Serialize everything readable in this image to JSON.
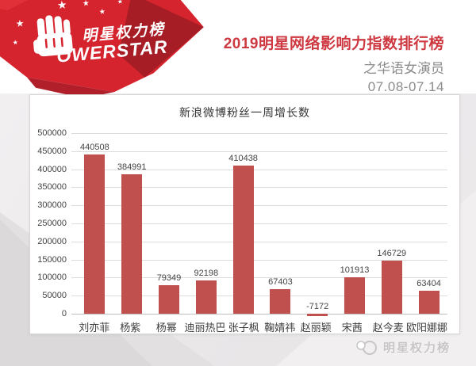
{
  "header": {
    "logo": {
      "name_cn": "明星权力榜",
      "name_en": "OWERSTAR"
    },
    "title": "2019明星网络影响力指数排行榜",
    "subtitle": "之华语女演员",
    "date_range": "07.08-07.14"
  },
  "chart_data": {
    "type": "bar",
    "title": "新浪微博粉丝一周增长数",
    "categories": [
      "刘亦菲",
      "杨紫",
      "杨幂",
      "迪丽热巴",
      "张子枫",
      "鞠婧祎",
      "赵丽颖",
      "宋茜",
      "赵今麦",
      "欧阳娜娜"
    ],
    "values": [
      440508,
      384991,
      79349,
      92198,
      410438,
      67403,
      -7172,
      101913,
      146729,
      63404
    ],
    "ylim": [
      0,
      500000
    ],
    "yticks": [
      500000,
      450000,
      400000,
      350000,
      300000,
      250000,
      200000,
      150000,
      100000,
      50000,
      0
    ],
    "xlabel": "",
    "ylabel": "",
    "grid": true,
    "legend_position": "none",
    "bar_color": "#c0504d"
  },
  "footer": {
    "watermark": "明星权力榜"
  },
  "colors": {
    "accent_red": "#ce3840",
    "logo_red": "#d5242e",
    "logo_red_dark": "#a61d25",
    "bar_red": "#c0504d",
    "muted_gray": "#8d8b8c",
    "watermark_gray": "#c7c5c6",
    "gridline_gray": "#dcdcdc"
  }
}
